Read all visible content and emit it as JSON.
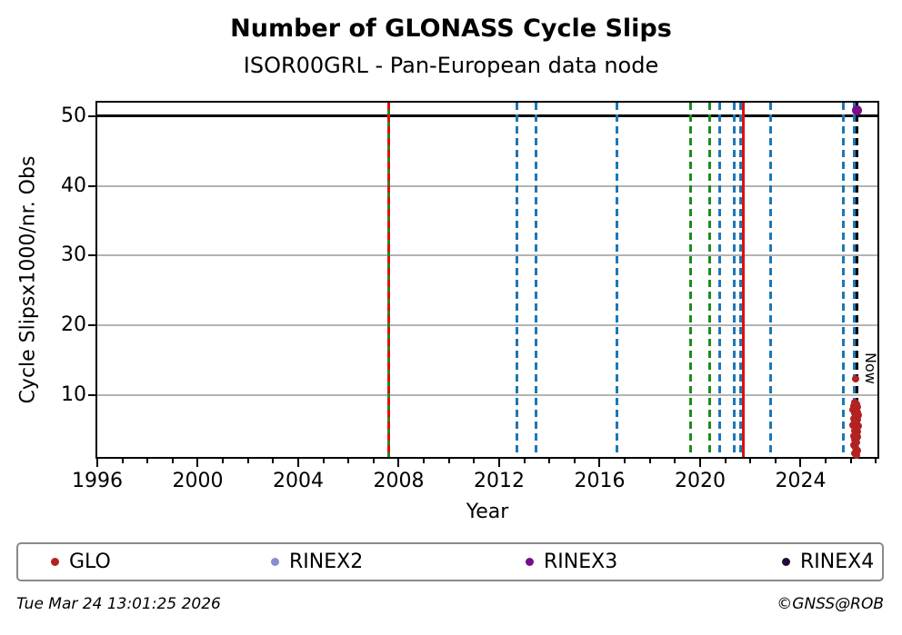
{
  "title": "Number of GLONASS Cycle Slips",
  "subtitle": "ISOR00GRL - Pan-European data node",
  "footer": {
    "timestamp": "Tue Mar 24 13:01:25 2026",
    "copyright": "©GNSS@ROB"
  },
  "colors": {
    "green": "#1e8b1e",
    "blue": "#1f77b4",
    "red": "#dd1111",
    "black": "#000000",
    "grid": "#b3b3b3",
    "axis": "#000000"
  },
  "chart_data": {
    "type": "scatter",
    "title": "Number of GLONASS Cycle Slips",
    "subtitle": "ISOR00GRL - Pan-European data node",
    "xlabel": "Year",
    "ylabel": "Cycle Slipsx1000/nr. Obs",
    "xlim": [
      1996,
      2027.06
    ],
    "ylim": [
      1.2,
      51.9
    ],
    "x_major_ticks": [
      1996,
      2000,
      2004,
      2008,
      2012,
      2016,
      2020,
      2024
    ],
    "x_minor_step_years": 1,
    "y_major_ticks": [
      10,
      20,
      30,
      40,
      50
    ],
    "grid": "horizontal-gray",
    "hline": {
      "y": 50,
      "color": "black"
    },
    "now_line": {
      "year": 2026.26,
      "label": "Now"
    },
    "vlines": [
      {
        "year": 2007.62,
        "color": "green",
        "style": "solid"
      },
      {
        "year": 2007.62,
        "color": "red",
        "style": "dashed"
      },
      {
        "year": 2012.69,
        "color": "blue",
        "style": "dashed"
      },
      {
        "year": 2013.48,
        "color": "blue",
        "style": "dashed"
      },
      {
        "year": 2016.7,
        "color": "blue",
        "style": "dashed"
      },
      {
        "year": 2019.62,
        "color": "green",
        "style": "dashed"
      },
      {
        "year": 2020.38,
        "color": "green",
        "style": "dashed"
      },
      {
        "year": 2020.77,
        "color": "blue",
        "style": "dashed"
      },
      {
        "year": 2021.35,
        "color": "blue",
        "style": "dashed"
      },
      {
        "year": 2021.6,
        "color": "blue",
        "style": "dashed"
      },
      {
        "year": 2021.72,
        "color": "red",
        "style": "solid"
      },
      {
        "year": 2022.8,
        "color": "blue",
        "style": "dashed"
      },
      {
        "year": 2025.72,
        "color": "blue",
        "style": "dashed"
      },
      {
        "year": 2026.15,
        "color": "blue",
        "style": "dashed"
      },
      {
        "year": 2026.26,
        "color": "black",
        "style": "dashed"
      }
    ],
    "legend": {
      "position": "bottom",
      "entries": [
        "GLO",
        "RINEX2",
        "RINEX3",
        "RINEX4"
      ]
    },
    "series": [
      {
        "name": "GLO",
        "color": "#b22222",
        "points": [
          [
            2026.18,
            12.4
          ],
          [
            2026.16,
            9.0
          ],
          [
            2026.24,
            8.8
          ],
          [
            2026.12,
            8.5
          ],
          [
            2026.28,
            8.3
          ],
          [
            2026.19,
            8.1
          ],
          [
            2026.1,
            7.9
          ],
          [
            2026.26,
            7.6
          ],
          [
            2026.15,
            7.4
          ],
          [
            2026.31,
            7.2
          ],
          [
            2026.21,
            7.0
          ],
          [
            2026.12,
            6.7
          ],
          [
            2026.27,
            6.5
          ],
          [
            2026.17,
            6.2
          ],
          [
            2026.23,
            6.0
          ],
          [
            2026.1,
            5.8
          ],
          [
            2026.3,
            5.6
          ],
          [
            2026.19,
            5.3
          ],
          [
            2026.14,
            5.0
          ],
          [
            2026.25,
            4.8
          ],
          [
            2026.21,
            4.5
          ],
          [
            2026.11,
            4.2
          ],
          [
            2026.28,
            4.0
          ],
          [
            2026.17,
            3.7
          ],
          [
            2026.23,
            3.3
          ],
          [
            2026.13,
            2.9
          ],
          [
            2026.2,
            2.5
          ],
          [
            2026.27,
            2.1
          ],
          [
            2026.16,
            1.7
          ],
          [
            2026.22,
            1.4
          ]
        ]
      },
      {
        "name": "RINEX2",
        "color": "#8b8bcf",
        "points": []
      },
      {
        "name": "RINEX3",
        "color": "#760d8a",
        "points": [
          [
            2026.26,
            50.8
          ]
        ]
      },
      {
        "name": "RINEX4",
        "color": "#2a0934",
        "points": []
      }
    ]
  }
}
